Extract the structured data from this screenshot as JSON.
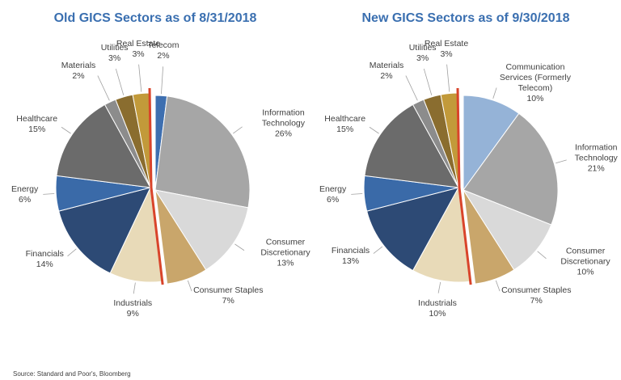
{
  "source": "Source: Standard and Poor's, Bloomberg",
  "chart_data": [
    {
      "type": "pie",
      "title": "Old GICS Sectors as of 8/31/2018",
      "categories": [
        "Telecom",
        "Information Technology",
        "Consumer Discretionary",
        "Consumer Staples",
        "Industrials",
        "Financials",
        "Energy",
        "Healthcare",
        "Materials",
        "Utilities",
        "Real Estate"
      ],
      "values": [
        2,
        26,
        13,
        7,
        9,
        14,
        6,
        15,
        2,
        3,
        3
      ],
      "value_labels": [
        "2%",
        "26%",
        "13%",
        "7%",
        "9%",
        "14%",
        "6%",
        "15%",
        "2%",
        "3%",
        "3%"
      ],
      "colors": [
        "#3e6fb0",
        "#a6a6a6",
        "#d9d9d9",
        "#c9a66b",
        "#e8dab8",
        "#2d4a75",
        "#3a6aa8",
        "#6b6b6b",
        "#8c8c8c",
        "#8a6d2f",
        "#c29a3a"
      ]
    },
    {
      "type": "pie",
      "title": "New GICS Sectors as of 9/30/2018",
      "categories": [
        "Communication Services (Formerly Telecom)",
        "Information Technology",
        "Consumer Discretionary",
        "Consumer Staples",
        "Industrials",
        "Financials",
        "Energy",
        "Healthcare",
        "Materials",
        "Utilities",
        "Real Estate"
      ],
      "values": [
        10,
        21,
        10,
        7,
        10,
        13,
        6,
        15,
        2,
        3,
        3
      ],
      "value_labels": [
        "10%",
        "21%",
        "10%",
        "7%",
        "10%",
        "13%",
        "6%",
        "15%",
        "2%",
        "3%",
        "3%"
      ],
      "colors": [
        "#95b3d7",
        "#a6a6a6",
        "#d9d9d9",
        "#c9a66b",
        "#e8dab8",
        "#2d4a75",
        "#3a6aa8",
        "#6b6b6b",
        "#8c8c8c",
        "#8a6d2f",
        "#c29a3a"
      ]
    }
  ]
}
